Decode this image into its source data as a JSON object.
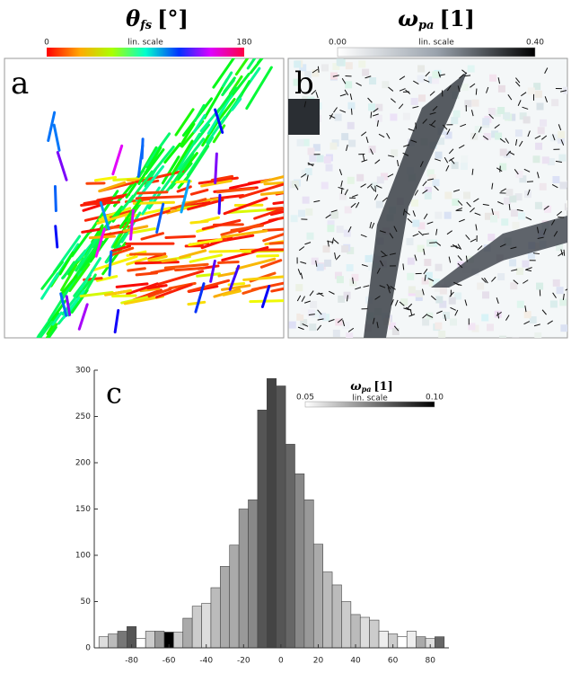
{
  "panels": [
    {
      "label": "a",
      "symbol": "θ",
      "subscript": "fs",
      "unit": "[°]",
      "scale_min": "0",
      "scale_max": "180",
      "scale_note": "lin. scale"
    },
    {
      "label": "b",
      "symbol": "ω",
      "subscript": "pa",
      "unit": "[1]",
      "scale_min": "0.00",
      "scale_max": "0.40",
      "scale_note": "lin. scale"
    }
  ],
  "chart_data": {
    "type": "histogram",
    "label": "c",
    "legend": {
      "symbol": "ω",
      "subscript": "pa",
      "unit": "[1]",
      "scale_min": "0.05",
      "scale_max": "0.10",
      "scale_note": "lin. scale"
    },
    "bins": [
      -97.5,
      -92.5,
      -87.5,
      -82.5,
      -77.5,
      -72.5,
      -67.5,
      -62.5,
      -57.5,
      -52.5,
      -47.5,
      -42.5,
      -37.5,
      -32.5,
      -27.5,
      -22.5,
      -17.5,
      -12.5,
      -7.5,
      -2.5,
      2.5,
      7.5,
      12.5,
      17.5,
      22.5,
      27.5,
      32.5,
      37.5,
      42.5,
      47.5,
      52.5,
      57.5,
      62.5,
      67.5,
      72.5,
      77.5,
      82.5,
      87.5
    ],
    "values": [
      12,
      15,
      18,
      23,
      10,
      18,
      18,
      17,
      17,
      32,
      45,
      48,
      65,
      88,
      111,
      150,
      160,
      257,
      291,
      283,
      220,
      188,
      160,
      112,
      82,
      68,
      50,
      36,
      33,
      30,
      18,
      15,
      12,
      18,
      12,
      10,
      12
    ],
    "colors": [
      "#dddddd",
      "#bbbbbb",
      "#777777",
      "#555555",
      "#ffffff",
      "#cccccc",
      "#999999",
      "#000000",
      "#cccccc",
      "#aaaaaa",
      "#cccccc",
      "#dddddd",
      "#bbbbbb",
      "#aaaaaa",
      "#aaaaaa",
      "#999999",
      "#888888",
      "#555555",
      "#444444",
      "#555555",
      "#666666",
      "#888888",
      "#999999",
      "#aaaaaa",
      "#bbbbbb",
      "#bbbbbb",
      "#cccccc",
      "#bbbbbb",
      "#dddddd",
      "#cccccc",
      "#eeeeee",
      "#cccccc",
      "#ffffff",
      "#eeeeee",
      "#aaaaaa",
      "#dddddd",
      "#666666"
    ],
    "xlim": [
      -100,
      90
    ],
    "ylim": [
      0,
      300
    ],
    "xticks": [
      -80,
      -60,
      -40,
      -20,
      0,
      20,
      40,
      60,
      80
    ],
    "yticks": [
      0,
      50,
      100,
      150,
      200,
      250,
      300
    ]
  }
}
